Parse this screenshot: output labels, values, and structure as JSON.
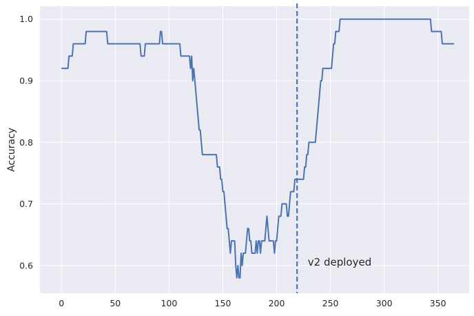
{
  "chart_data": {
    "type": "line",
    "title": "",
    "xlabel": "",
    "ylabel": "Accuracy",
    "xlim": [
      -20,
      379
    ],
    "ylim": [
      0.555,
      1.021
    ],
    "xticks": [
      0,
      50,
      100,
      150,
      200,
      250,
      300,
      350
    ],
    "yticks": [
      0.6,
      0.7,
      0.8,
      0.9,
      1.0
    ],
    "xtick_labels": [
      "0",
      "50",
      "100",
      "150",
      "200",
      "250",
      "300",
      "350"
    ],
    "ytick_labels": [
      "0.6",
      "0.7",
      "0.8",
      "0.9",
      "1.0"
    ],
    "grid": true,
    "style": "seaborn-darkgrid",
    "colors": {
      "line": "#4c72b0",
      "background": "#eaeaf2",
      "grid": "#ffffff"
    },
    "series": [
      {
        "x": [
          0,
          6,
          7,
          10,
          11,
          13,
          14,
          22,
          23,
          42,
          43,
          73,
          74,
          77,
          78,
          91,
          92,
          93,
          94,
          110,
          111,
          119,
          120,
          121,
          122,
          123,
          124,
          125,
          126,
          127,
          128,
          129,
          130,
          131,
          132,
          133,
          134,
          135,
          136,
          144,
          145,
          147,
          148,
          149,
          150,
          151,
          152,
          153,
          154,
          155,
          156,
          157,
          158,
          159,
          160,
          161,
          162,
          163,
          164,
          165,
          166,
          167,
          168,
          169,
          170,
          171,
          172,
          173,
          174,
          175,
          176,
          177,
          178,
          179,
          180,
          181,
          182,
          183,
          184,
          185,
          186,
          187,
          188,
          189,
          190,
          191,
          192,
          193,
          194,
          195,
          196,
          197,
          198,
          199,
          200,
          201,
          202,
          203,
          204,
          205,
          206,
          207,
          208,
          209,
          210,
          211,
          212,
          213,
          214,
          215,
          216,
          217,
          218,
          219,
          220,
          221,
          222,
          223,
          224,
          225,
          226,
          227,
          228,
          229,
          230,
          231,
          232,
          233,
          234,
          235,
          236,
          237,
          238,
          239,
          240,
          241,
          242,
          243,
          244,
          245,
          246,
          247,
          248,
          249,
          250,
          251,
          252,
          253,
          254,
          255,
          256,
          257,
          258,
          259,
          260,
          261,
          262,
          263,
          264,
          265,
          266,
          267,
          268,
          269,
          270,
          271,
          272,
          273,
          274,
          275,
          276,
          277,
          278,
          279,
          280,
          281,
          282,
          283,
          284,
          285,
          286,
          287,
          288,
          289,
          290,
          343,
          344,
          353,
          354,
          365
        ],
        "y": [
          0.92,
          0.92,
          0.94,
          0.94,
          0.96,
          0.96,
          0.96,
          0.96,
          0.98,
          0.98,
          0.96,
          0.96,
          0.94,
          0.94,
          0.96,
          0.96,
          0.98,
          0.98,
          0.96,
          0.96,
          0.94,
          0.94,
          0.92,
          0.94,
          0.9,
          0.92,
          0.9,
          0.88,
          0.86,
          0.84,
          0.82,
          0.82,
          0.8,
          0.78,
          0.78,
          0.78,
          0.78,
          0.78,
          0.78,
          0.78,
          0.76,
          0.76,
          0.74,
          0.74,
          0.72,
          0.72,
          0.7,
          0.68,
          0.66,
          0.66,
          0.64,
          0.62,
          0.64,
          0.64,
          0.64,
          0.64,
          0.6,
          0.58,
          0.6,
          0.58,
          0.58,
          0.62,
          0.6,
          0.62,
          0.62,
          0.62,
          0.64,
          0.66,
          0.66,
          0.64,
          0.64,
          0.62,
          0.62,
          0.62,
          0.62,
          0.64,
          0.62,
          0.64,
          0.64,
          0.62,
          0.64,
          0.64,
          0.64,
          0.64,
          0.66,
          0.68,
          0.66,
          0.64,
          0.64,
          0.64,
          0.64,
          0.64,
          0.62,
          0.64,
          0.64,
          0.66,
          0.68,
          0.68,
          0.68,
          0.7,
          0.7,
          0.7,
          0.7,
          0.7,
          0.68,
          0.68,
          0.7,
          0.72,
          0.72,
          0.72,
          0.72,
          0.74,
          0.74,
          0.74,
          0.74,
          0.74,
          0.74,
          0.74,
          0.74,
          0.74,
          0.76,
          0.76,
          0.78,
          0.78,
          0.8,
          0.8,
          0.8,
          0.8,
          0.8,
          0.8,
          0.8,
          0.82,
          0.84,
          0.86,
          0.88,
          0.9,
          0.9,
          0.92,
          0.92,
          0.92,
          0.92,
          0.92,
          0.92,
          0.92,
          0.92,
          0.92,
          0.94,
          0.96,
          0.96,
          0.98,
          0.98,
          0.98,
          0.98,
          1.0,
          1.0,
          1.0,
          1.0,
          1.0,
          1.0,
          1.0,
          1.0,
          1.0,
          1.0,
          1.0,
          1.0,
          1.0,
          1.0,
          1.0,
          1.0,
          1.0,
          1.0,
          1.0,
          1.0,
          1.0,
          1.0,
          1.0,
          1.0,
          1.0,
          1.0,
          1.0,
          1.0,
          1.0,
          1.0,
          1.0,
          1.0,
          1.0,
          0.98,
          0.98,
          0.96,
          0.96
        ]
      }
    ],
    "vlines": [
      {
        "x": 219,
        "style": "dashed"
      }
    ],
    "annotations": [
      {
        "text": "v2 deployed",
        "x": 229,
        "y": 0.6
      }
    ]
  }
}
